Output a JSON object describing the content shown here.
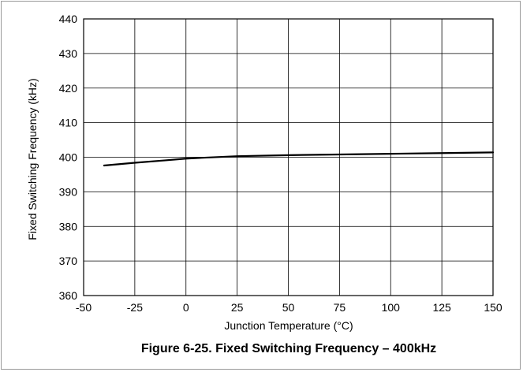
{
  "chart_data": {
    "type": "line",
    "title": "",
    "caption": "Figure 6-25. Fixed Switching Frequency – 400kHz",
    "xlabel": "Junction Temperature (°C)",
    "ylabel": "Fixed Switching Frequency (kHz)",
    "xlim": [
      -50,
      150
    ],
    "ylim": [
      360,
      440
    ],
    "x_ticks": [
      "-50",
      "-25",
      "0",
      "25",
      "50",
      "75",
      "100",
      "125",
      "150"
    ],
    "y_ticks": [
      "360",
      "370",
      "380",
      "390",
      "400",
      "410",
      "420",
      "430",
      "440"
    ],
    "grid": true,
    "legend": "none",
    "series": [
      {
        "color": "#000000",
        "x": [
          -40,
          -25,
          -10,
          0,
          10,
          25,
          50,
          75,
          100,
          125,
          150
        ],
        "y": [
          397.6,
          398.4,
          399.1,
          399.6,
          399.9,
          400.3,
          400.6,
          400.8,
          401.0,
          401.2,
          401.4
        ]
      }
    ]
  }
}
